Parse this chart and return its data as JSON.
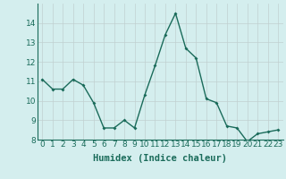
{
  "x": [
    0,
    1,
    2,
    3,
    4,
    5,
    6,
    7,
    8,
    9,
    10,
    11,
    12,
    13,
    14,
    15,
    16,
    17,
    18,
    19,
    20,
    21,
    22,
    23
  ],
  "y": [
    11.1,
    10.6,
    10.6,
    11.1,
    10.8,
    9.9,
    8.6,
    8.6,
    9.0,
    8.6,
    10.3,
    11.8,
    13.4,
    14.5,
    12.7,
    12.2,
    10.1,
    9.9,
    8.7,
    8.6,
    7.9,
    8.3,
    8.4,
    8.5
  ],
  "xlabel": "Humidex (Indice chaleur)",
  "ylabel": "",
  "ylim": [
    8,
    15
  ],
  "yticks": [
    8,
    9,
    10,
    11,
    12,
    13,
    14
  ],
  "xlim": [
    -0.5,
    23.5
  ],
  "line_color": "#1a6b5a",
  "marker": "D",
  "marker_size": 2.0,
  "bg_color": "#d4eeee",
  "grid_color": "#c0d0d0",
  "xlabel_fontsize": 7.5,
  "tick_fontsize": 6.5
}
